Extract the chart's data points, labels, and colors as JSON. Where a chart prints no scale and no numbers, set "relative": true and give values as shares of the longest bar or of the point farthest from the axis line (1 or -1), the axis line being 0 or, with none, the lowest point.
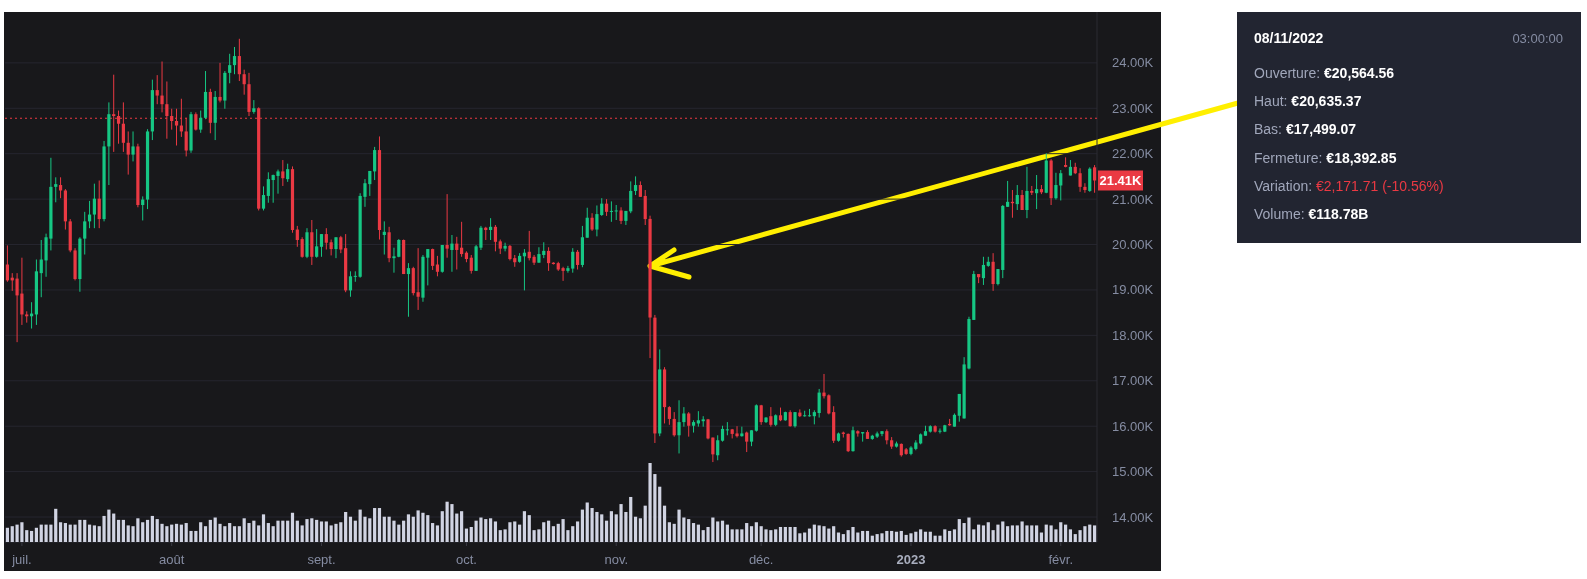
{
  "chart_data": [
    {
      "type": "candlestick",
      "xlim": [
        "2022-06-27T12:00",
        "2023-02-08T12:00"
      ],
      "ylim": [
        13.45,
        25.12
      ],
      "xticks": [
        {
          "value": "2022-07-01",
          "label": "juil."
        },
        {
          "value": "2022-08-01",
          "label": "août"
        },
        {
          "value": "2022-09-01",
          "label": "sept."
        },
        {
          "value": "2022-10-01",
          "label": "oct."
        },
        {
          "value": "2022-11-01",
          "label": "nov."
        },
        {
          "value": "2022-12-01",
          "label": "déc."
        },
        {
          "value": "2023-01-01",
          "label": "2023"
        },
        {
          "value": "2023-02-01",
          "label": "févr."
        }
      ],
      "yticks": [
        {
          "value": 14,
          "label": "14.00K"
        },
        {
          "value": 15,
          "label": "15.00K"
        },
        {
          "value": 16,
          "label": "16.00K"
        },
        {
          "value": 17,
          "label": "17.00K"
        },
        {
          "value": 18,
          "label": "18.00K"
        },
        {
          "value": 19,
          "label": "19.00K"
        },
        {
          "value": 20,
          "label": "20.00K"
        },
        {
          "value": 21,
          "label": "21.00K"
        },
        {
          "value": 22,
          "label": "22.00K"
        },
        {
          "value": 23,
          "label": "23.00K"
        },
        {
          "value": 24,
          "label": "24.00K"
        }
      ],
      "grid": "y",
      "ref_lines": [
        {
          "axis": "y",
          "value": 22.78,
          "color": "#ea3943",
          "line_style": "dotted"
        }
      ],
      "annotations": [
        "21.41K"
      ],
      "x": [
        "2022-06-28",
        "2022-06-29",
        "2022-06-30",
        "2022-07-01",
        "2022-07-02",
        "2022-07-03",
        "2022-07-04",
        "2022-07-05",
        "2022-07-06",
        "2022-07-07",
        "2022-07-08",
        "2022-07-09",
        "2022-07-10",
        "2022-07-11",
        "2022-07-12",
        "2022-07-13",
        "2022-07-14",
        "2022-07-15",
        "2022-07-16",
        "2022-07-17",
        "2022-07-18",
        "2022-07-19",
        "2022-07-20",
        "2022-07-21",
        "2022-07-22",
        "2022-07-23",
        "2022-07-24",
        "2022-07-25",
        "2022-07-26",
        "2022-07-27",
        "2022-07-28",
        "2022-07-29",
        "2022-07-30",
        "2022-07-31",
        "2022-08-01",
        "2022-08-02",
        "2022-08-03",
        "2022-08-04",
        "2022-08-05",
        "2022-08-06",
        "2022-08-07",
        "2022-08-08",
        "2022-08-09",
        "2022-08-10",
        "2022-08-11",
        "2022-08-12",
        "2022-08-13",
        "2022-08-14",
        "2022-08-15",
        "2022-08-16",
        "2022-08-17",
        "2022-08-18",
        "2022-08-19",
        "2022-08-20",
        "2022-08-21",
        "2022-08-22",
        "2022-08-23",
        "2022-08-24",
        "2022-08-25",
        "2022-08-26",
        "2022-08-27",
        "2022-08-28",
        "2022-08-29",
        "2022-08-30",
        "2022-08-31",
        "2022-09-01",
        "2022-09-02",
        "2022-09-03",
        "2022-09-04",
        "2022-09-05",
        "2022-09-06",
        "2022-09-07",
        "2022-09-08",
        "2022-09-09",
        "2022-09-10",
        "2022-09-11",
        "2022-09-12",
        "2022-09-13",
        "2022-09-14",
        "2022-09-15",
        "2022-09-16",
        "2022-09-17",
        "2022-09-18",
        "2022-09-19",
        "2022-09-20",
        "2022-09-21",
        "2022-09-22",
        "2022-09-23",
        "2022-09-24",
        "2022-09-25",
        "2022-09-26",
        "2022-09-27",
        "2022-09-28",
        "2022-09-29",
        "2022-09-30",
        "2022-10-01",
        "2022-10-02",
        "2022-10-03",
        "2022-10-04",
        "2022-10-05",
        "2022-10-06",
        "2022-10-07",
        "2022-10-08",
        "2022-10-09",
        "2022-10-10",
        "2022-10-11",
        "2022-10-12",
        "2022-10-13",
        "2022-10-14",
        "2022-10-15",
        "2022-10-16",
        "2022-10-17",
        "2022-10-18",
        "2022-10-19",
        "2022-10-20",
        "2022-10-21",
        "2022-10-22",
        "2022-10-23",
        "2022-10-24",
        "2022-10-25",
        "2022-10-26",
        "2022-10-27",
        "2022-10-28",
        "2022-10-29",
        "2022-10-30",
        "2022-10-31",
        "2022-11-01",
        "2022-11-02",
        "2022-11-03",
        "2022-11-04",
        "2022-11-05",
        "2022-11-06",
        "2022-11-07",
        "2022-11-08",
        "2022-11-09",
        "2022-11-10",
        "2022-11-11",
        "2022-11-12",
        "2022-11-13",
        "2022-11-14",
        "2022-11-15",
        "2022-11-16",
        "2022-11-17",
        "2022-11-18",
        "2022-11-19",
        "2022-11-20",
        "2022-11-21",
        "2022-11-22",
        "2022-11-23",
        "2022-11-24",
        "2022-11-25",
        "2022-11-26",
        "2022-11-27",
        "2022-11-28",
        "2022-11-29",
        "2022-11-30",
        "2022-12-01",
        "2022-12-02",
        "2022-12-03",
        "2022-12-04",
        "2022-12-05",
        "2022-12-06",
        "2022-12-07",
        "2022-12-08",
        "2022-12-09",
        "2022-12-10",
        "2022-12-11",
        "2022-12-12",
        "2022-12-13",
        "2022-12-14",
        "2022-12-15",
        "2022-12-16",
        "2022-12-17",
        "2022-12-18",
        "2022-12-19",
        "2022-12-20",
        "2022-12-21",
        "2022-12-22",
        "2022-12-23",
        "2022-12-24",
        "2022-12-25",
        "2022-12-26",
        "2022-12-27",
        "2022-12-28",
        "2022-12-29",
        "2022-12-30",
        "2022-12-31",
        "2023-01-01",
        "2023-01-02",
        "2023-01-03",
        "2023-01-04",
        "2023-01-05",
        "2023-01-06",
        "2023-01-07",
        "2023-01-08",
        "2023-01-09",
        "2023-01-10",
        "2023-01-11",
        "2023-01-12",
        "2023-01-13",
        "2023-01-14",
        "2023-01-15",
        "2023-01-16",
        "2023-01-17",
        "2023-01-18",
        "2023-01-19",
        "2023-01-20",
        "2023-01-21",
        "2023-01-22",
        "2023-01-23",
        "2023-01-24",
        "2023-01-25",
        "2023-01-26",
        "2023-01-27",
        "2023-01-28",
        "2023-01-29",
        "2023-01-30",
        "2023-01-31",
        "2023-02-01",
        "2023-02-02",
        "2023-02-03",
        "2023-02-04",
        "2023-02-05",
        "2023-02-06",
        "2023-02-07",
        "2023-02-08"
      ],
      "ohlc": [
        [
          19.56,
          19.98,
          19.18,
          19.21
        ],
        [
          19.27,
          19.37,
          18.98,
          19.21
        ],
        [
          19.25,
          19.37,
          17.85,
          18.88
        ],
        [
          18.92,
          19.71,
          18.23,
          18.46
        ],
        [
          18.46,
          18.53,
          18.28,
          18.42
        ],
        [
          18.42,
          18.73,
          18.15,
          18.48
        ],
        [
          18.46,
          19.67,
          18.23,
          19.41
        ],
        [
          19.37,
          20.1,
          18.84,
          19.67
        ],
        [
          19.65,
          20.24,
          19.29,
          20.16
        ],
        [
          20.13,
          21.91,
          19.87,
          21.27
        ],
        [
          21.27,
          21.48,
          20.93,
          21.33
        ],
        [
          21.31,
          21.48,
          21.02,
          21.19
        ],
        [
          21.19,
          21.22,
          20.33,
          20.51
        ],
        [
          20.51,
          20.56,
          19.83,
          19.87
        ],
        [
          19.87,
          19.92,
          19.21,
          19.24
        ],
        [
          19.24,
          20.16,
          18.96,
          20.13
        ],
        [
          20.13,
          20.72,
          19.78,
          20.51
        ],
        [
          20.51,
          20.96,
          20.36,
          20.66
        ],
        [
          20.66,
          21.34,
          20.36,
          21.01
        ],
        [
          21.01,
          21.41,
          20.36,
          20.56
        ],
        [
          20.56,
          22.28,
          20.51,
          22.16
        ],
        [
          22.16,
          23.13,
          21.31,
          22.87
        ],
        [
          22.87,
          23.74,
          22.04,
          22.83
        ],
        [
          22.83,
          22.95,
          22.22,
          22.66
        ],
        [
          22.66,
          23.13,
          22.04,
          22.24
        ],
        [
          22.24,
          22.49,
          21.54,
          21.98
        ],
        [
          21.98,
          22.49,
          21.83,
          22.16
        ],
        [
          22.16,
          22.22,
          20.82,
          20.87
        ],
        [
          20.87,
          21.06,
          20.53,
          20.99
        ],
        [
          20.99,
          22.54,
          20.78,
          22.49
        ],
        [
          22.49,
          23.63,
          22.3,
          23.4
        ],
        [
          23.4,
          23.73,
          23.09,
          23.28
        ],
        [
          23.28,
          24.03,
          22.91,
          23.09
        ],
        [
          23.09,
          23.59,
          22.33,
          22.83
        ],
        [
          22.83,
          22.99,
          22.53,
          22.72
        ],
        [
          22.72,
          22.99,
          22.18,
          22.62
        ],
        [
          22.62,
          23.21,
          22.37,
          22.49
        ],
        [
          22.49,
          22.79,
          21.94,
          22.07
        ],
        [
          22.07,
          22.92,
          22.02,
          22.87
        ],
        [
          22.87,
          22.91,
          22.51,
          22.53
        ],
        [
          22.53,
          22.95,
          22.46,
          22.79
        ],
        [
          22.79,
          23.82,
          22.76,
          23.36
        ],
        [
          23.36,
          23.43,
          22.45,
          22.68
        ],
        [
          22.68,
          23.38,
          22.3,
          23.25
        ],
        [
          23.25,
          24.0,
          23.13,
          23.17
        ],
        [
          23.17,
          23.82,
          22.99,
          23.78
        ],
        [
          23.78,
          24.2,
          23.55,
          23.95
        ],
        [
          23.95,
          24.35,
          23.75,
          24.15
        ],
        [
          24.15,
          24.53,
          23.6,
          23.75
        ],
        [
          23.75,
          23.85,
          23.3,
          23.53
        ],
        [
          23.53,
          23.78,
          22.83,
          22.92
        ],
        [
          22.92,
          23.18,
          22.88,
          23.0
        ],
        [
          23.0,
          23.02,
          20.75,
          20.79
        ],
        [
          20.79,
          21.28,
          20.75,
          21.09
        ],
        [
          21.07,
          21.59,
          20.92,
          21.44
        ],
        [
          21.42,
          21.54,
          20.92,
          21.53
        ],
        [
          21.51,
          21.65,
          21.12,
          21.61
        ],
        [
          21.61,
          21.86,
          21.29,
          21.46
        ],
        [
          21.44,
          21.78,
          21.38,
          21.66
        ],
        [
          21.66,
          21.72,
          20.26,
          20.32
        ],
        [
          20.33,
          20.41,
          19.95,
          20.1
        ],
        [
          20.12,
          20.16,
          19.71,
          19.73
        ],
        [
          19.73,
          20.36,
          19.7,
          20.27
        ],
        [
          20.27,
          20.54,
          19.55,
          19.73
        ],
        [
          19.73,
          20.34,
          19.71,
          19.96
        ],
        [
          19.95,
          20.23,
          19.73,
          20.23
        ],
        [
          20.23,
          20.36,
          19.89,
          20.04
        ],
        [
          20.05,
          20.11,
          19.76,
          19.9
        ],
        [
          19.9,
          20.16,
          19.7,
          20.16
        ],
        [
          20.16,
          20.19,
          19.81,
          19.89
        ],
        [
          19.92,
          20.23,
          18.95,
          18.99
        ],
        [
          18.99,
          19.41,
          18.85,
          19.3
        ],
        [
          19.29,
          19.41,
          19.18,
          19.31
        ],
        [
          19.29,
          21.13,
          19.27,
          21.07
        ],
        [
          21.05,
          21.44,
          20.83,
          21.35
        ],
        [
          21.33,
          21.62,
          21.07,
          21.62
        ],
        [
          21.61,
          22.15,
          21.42,
          22.08
        ],
        [
          22.08,
          22.38,
          20.11,
          20.32
        ],
        [
          20.21,
          20.51,
          19.78,
          20.28
        ],
        [
          20.27,
          20.39,
          19.61,
          19.7
        ],
        [
          19.7,
          19.93,
          19.38,
          19.74
        ],
        [
          19.73,
          20.12,
          19.72,
          20.1
        ],
        [
          20.1,
          20.11,
          19.35,
          19.35
        ],
        [
          19.35,
          19.59,
          18.41,
          19.48
        ],
        [
          19.48,
          19.51,
          18.88,
          18.93
        ],
        [
          18.95,
          19.92,
          18.56,
          18.85
        ],
        [
          18.83,
          19.77,
          18.74,
          19.73
        ],
        [
          19.71,
          19.9,
          19.1,
          19.9
        ],
        [
          19.9,
          19.91,
          19.44,
          19.53
        ],
        [
          19.56,
          19.75,
          19.3,
          19.4
        ],
        [
          19.4,
          19.99,
          19.38,
          19.99
        ],
        [
          19.99,
          21.11,
          19.71,
          19.91
        ],
        [
          19.88,
          20.21,
          19.4,
          20.02
        ],
        [
          20.02,
          20.17,
          19.45,
          19.88
        ],
        [
          19.93,
          20.5,
          19.73,
          19.79
        ],
        [
          19.82,
          19.85,
          19.61,
          19.68
        ],
        [
          19.71,
          19.77,
          19.36,
          19.42
        ],
        [
          19.42,
          19.99,
          19.42,
          19.96
        ],
        [
          19.93,
          20.41,
          19.88,
          20.37
        ],
        [
          20.37,
          20.39,
          20.1,
          20.32
        ],
        [
          20.32,
          20.58,
          20.1,
          20.39
        ],
        [
          20.39,
          20.43,
          19.85,
          20.06
        ],
        [
          20.07,
          20.11,
          19.79,
          19.91
        ],
        [
          19.91,
          20.04,
          19.85,
          19.97
        ],
        [
          19.97,
          19.99,
          19.65,
          19.68
        ],
        [
          19.7,
          19.77,
          19.51,
          19.61
        ],
        [
          19.62,
          19.81,
          19.6,
          19.75
        ],
        [
          19.74,
          19.9,
          18.99,
          19.82
        ],
        [
          19.84,
          20.3,
          19.65,
          19.7
        ],
        [
          19.73,
          19.77,
          19.55,
          19.6
        ],
        [
          19.6,
          19.94,
          19.6,
          19.79
        ],
        [
          19.77,
          20.05,
          19.7,
          19.86
        ],
        [
          19.86,
          19.94,
          19.42,
          19.59
        ],
        [
          19.6,
          19.61,
          19.56,
          19.57
        ],
        [
          19.59,
          19.62,
          19.42,
          19.45
        ],
        [
          19.48,
          19.51,
          19.2,
          19.42
        ],
        [
          19.42,
          19.53,
          19.38,
          19.48
        ],
        [
          19.47,
          19.92,
          19.38,
          19.84
        ],
        [
          19.84,
          19.88,
          19.45,
          19.55
        ],
        [
          19.55,
          20.41,
          19.5,
          20.16
        ],
        [
          20.15,
          20.81,
          20.15,
          20.59
        ],
        [
          20.59,
          20.69,
          20.3,
          20.33
        ],
        [
          20.33,
          20.86,
          20.18,
          20.67
        ],
        [
          20.65,
          21.02,
          20.63,
          20.9
        ],
        [
          20.9,
          21.0,
          20.63,
          20.72
        ],
        [
          20.73,
          20.95,
          20.5,
          20.74
        ],
        [
          20.74,
          20.87,
          20.54,
          20.75
        ],
        [
          20.75,
          20.82,
          20.45,
          20.52
        ],
        [
          20.52,
          20.74,
          20.43,
          20.74
        ],
        [
          20.73,
          21.39,
          20.69,
          21.18
        ],
        [
          21.18,
          21.5,
          21.09,
          21.31
        ],
        [
          21.31,
          21.39,
          21.05,
          21.05
        ],
        [
          21.07,
          21.2,
          20.43,
          20.56
        ],
        [
          20.56456,
          20.63537,
          17.49907,
          18.39285
        ],
        [
          18.39,
          18.45,
          15.63,
          15.84
        ],
        [
          15.84,
          17.69,
          15.78,
          17.25
        ],
        [
          17.25,
          17.3,
          16.06,
          16.42
        ],
        [
          16.42,
          16.44,
          16.03,
          16.16
        ],
        [
          16.16,
          16.31,
          15.77,
          15.8
        ],
        [
          15.8,
          16.57,
          15.4,
          16.09
        ],
        [
          16.09,
          16.42,
          15.99,
          16.28
        ],
        [
          16.28,
          16.31,
          15.77,
          16.01
        ],
        [
          16.01,
          16.13,
          15.86,
          16.09
        ],
        [
          16.06,
          16.33,
          15.99,
          16.13
        ],
        [
          16.11,
          16.22,
          15.99,
          16.15
        ],
        [
          16.15,
          16.16,
          15.71,
          15.73
        ],
        [
          15.75,
          15.75,
          15.21,
          15.38
        ],
        [
          15.36,
          15.8,
          15.25,
          15.69
        ],
        [
          15.68,
          16.01,
          15.66,
          15.94
        ],
        [
          15.91,
          16.09,
          15.8,
          15.93
        ],
        [
          15.93,
          15.94,
          15.73,
          15.83
        ],
        [
          15.84,
          16.0,
          15.75,
          15.78
        ],
        [
          15.78,
          15.99,
          15.77,
          15.84
        ],
        [
          15.86,
          15.88,
          15.43,
          15.66
        ],
        [
          15.66,
          15.91,
          15.56,
          15.91
        ],
        [
          15.9,
          16.48,
          15.88,
          16.46
        ],
        [
          16.46,
          16.47,
          16.03,
          16.09
        ],
        [
          16.09,
          16.2,
          16.07,
          16.19
        ],
        [
          16.22,
          16.42,
          15.99,
          16.03
        ],
        [
          16.03,
          16.26,
          16.0,
          16.24
        ],
        [
          16.24,
          16.41,
          16.11,
          16.13
        ],
        [
          16.13,
          16.32,
          16.12,
          16.31
        ],
        [
          16.31,
          16.35,
          15.99,
          16.0
        ],
        [
          16.0,
          16.31,
          15.97,
          16.31
        ],
        [
          16.3,
          16.37,
          16.2,
          16.22
        ],
        [
          16.22,
          16.34,
          16.21,
          16.24
        ],
        [
          16.22,
          16.38,
          16.21,
          16.24
        ],
        [
          16.22,
          16.35,
          16.04,
          16.31
        ],
        [
          16.29,
          16.82,
          16.19,
          16.74
        ],
        [
          16.74,
          17.15,
          16.61,
          16.66
        ],
        [
          16.68,
          16.7,
          16.26,
          16.28
        ],
        [
          16.31,
          16.44,
          15.63,
          15.68
        ],
        [
          15.68,
          15.86,
          15.66,
          15.84
        ],
        [
          15.86,
          15.88,
          15.75,
          15.83
        ],
        [
          15.83,
          15.84,
          15.43,
          15.45
        ],
        [
          15.45,
          15.99,
          15.44,
          15.91
        ],
        [
          15.89,
          15.91,
          15.77,
          15.84
        ],
        [
          15.84,
          15.87,
          15.66,
          15.87
        ],
        [
          15.87,
          15.91,
          15.72,
          15.72
        ],
        [
          15.72,
          15.81,
          15.7,
          15.79
        ],
        [
          15.77,
          15.88,
          15.74,
          15.84
        ],
        [
          15.83,
          15.89,
          15.78,
          15.89
        ],
        [
          15.89,
          15.93,
          15.6,
          15.69
        ],
        [
          15.69,
          15.76,
          15.5,
          15.55
        ],
        [
          15.55,
          15.66,
          15.53,
          15.62
        ],
        [
          15.61,
          15.62,
          15.33,
          15.36
        ],
        [
          15.49,
          15.52,
          15.37,
          15.39
        ],
        [
          15.39,
          15.56,
          15.36,
          15.53
        ],
        [
          15.5,
          15.69,
          15.47,
          15.64
        ],
        [
          15.62,
          15.84,
          15.6,
          15.82
        ],
        [
          15.79,
          16.01,
          15.79,
          15.89
        ],
        [
          15.88,
          16.02,
          15.86,
          16.0
        ],
        [
          16.0,
          16.02,
          15.86,
          15.88
        ],
        [
          15.88,
          15.95,
          15.84,
          15.9
        ],
        [
          15.88,
          16.03,
          15.87,
          16.02
        ],
        [
          16.05,
          16.16,
          16.01,
          16.02
        ],
        [
          15.99,
          16.28,
          15.99,
          16.25
        ],
        [
          16.23,
          16.71,
          16.1,
          16.71
        ],
        [
          16.17,
          17.52,
          16.17,
          17.36
        ],
        [
          17.27,
          18.41,
          17.25,
          18.36
        ],
        [
          18.34,
          19.42,
          18.34,
          19.35
        ],
        [
          19.35,
          19.35,
          19.15,
          19.28
        ],
        [
          19.26,
          19.73,
          19.11,
          19.55
        ],
        [
          19.53,
          19.73,
          19.51,
          19.62
        ],
        [
          19.62,
          19.81,
          18.98,
          19.13
        ],
        [
          19.13,
          19.46,
          19.1,
          19.46
        ],
        [
          19.44,
          20.87,
          19.26,
          20.85
        ],
        [
          20.83,
          21.4,
          20.83,
          20.94
        ],
        [
          20.94,
          21.2,
          20.59,
          20.91
        ],
        [
          20.89,
          21.31,
          20.76,
          21.09
        ],
        [
          21.09,
          21.2,
          20.76,
          20.76
        ],
        [
          20.76,
          21.71,
          20.58,
          21.18
        ],
        [
          21.18,
          21.29,
          21.09,
          21.14
        ],
        [
          21.13,
          21.53,
          20.78,
          21.22
        ],
        [
          21.22,
          21.31,
          21.11,
          21.15
        ],
        [
          21.14,
          22.01,
          21.13,
          21.85
        ],
        [
          21.85,
          21.88,
          20.87,
          21.02
        ],
        [
          21.02,
          21.58,
          20.99,
          21.31
        ],
        [
          21.3,
          21.64,
          20.97,
          21.57
        ],
        [
          21.75,
          21.92,
          21.7,
          21.71
        ],
        [
          21.52,
          21.86,
          21.52,
          21.71
        ],
        [
          21.71,
          21.8,
          21.55,
          21.57
        ],
        [
          21.57,
          21.68,
          21.16,
          21.27
        ],
        [
          21.27,
          21.35,
          21.14,
          21.2
        ],
        [
          21.18,
          21.7,
          21.16,
          21.67
        ],
        [
          21.7,
          21.75,
          21.14,
          21.41
        ]
      ]
    },
    {
      "type": "bar",
      "relative": true,
      "color": "#d1d4e3",
      "xlim": [
        "2022-06-27T12:00",
        "2023-02-08T12:00"
      ],
      "x": [
        "2022-06-28",
        "2022-06-29",
        "2022-06-30",
        "2022-07-01",
        "2022-07-02",
        "2022-07-03",
        "2022-07-04",
        "2022-07-05",
        "2022-07-06",
        "2022-07-07",
        "2022-07-08",
        "2022-07-09",
        "2022-07-10",
        "2022-07-11",
        "2022-07-12",
        "2022-07-13",
        "2022-07-14",
        "2022-07-15",
        "2022-07-16",
        "2022-07-17",
        "2022-07-18",
        "2022-07-19",
        "2022-07-20",
        "2022-07-21",
        "2022-07-22",
        "2022-07-23",
        "2022-07-24",
        "2022-07-25",
        "2022-07-26",
        "2022-07-27",
        "2022-07-28",
        "2022-07-29",
        "2022-07-30",
        "2022-07-31",
        "2022-08-01",
        "2022-08-02",
        "2022-08-03",
        "2022-08-04",
        "2022-08-05",
        "2022-08-06",
        "2022-08-07",
        "2022-08-08",
        "2022-08-09",
        "2022-08-10",
        "2022-08-11",
        "2022-08-12",
        "2022-08-13",
        "2022-08-14",
        "2022-08-15",
        "2022-08-16",
        "2022-08-17",
        "2022-08-18",
        "2022-08-19",
        "2022-08-20",
        "2022-08-21",
        "2022-08-22",
        "2022-08-23",
        "2022-08-24",
        "2022-08-25",
        "2022-08-26",
        "2022-08-27",
        "2022-08-28",
        "2022-08-29",
        "2022-08-30",
        "2022-08-31",
        "2022-09-01",
        "2022-09-02",
        "2022-09-03",
        "2022-09-04",
        "2022-09-05",
        "2022-09-06",
        "2022-09-07",
        "2022-09-08",
        "2022-09-09",
        "2022-09-10",
        "2022-09-11",
        "2022-09-12",
        "2022-09-13",
        "2022-09-14",
        "2022-09-15",
        "2022-09-16",
        "2022-09-17",
        "2022-09-18",
        "2022-09-19",
        "2022-09-20",
        "2022-09-21",
        "2022-09-22",
        "2022-09-23",
        "2022-09-24",
        "2022-09-25",
        "2022-09-26",
        "2022-09-27",
        "2022-09-28",
        "2022-09-29",
        "2022-09-30",
        "2022-10-01",
        "2022-10-02",
        "2022-10-03",
        "2022-10-04",
        "2022-10-05",
        "2022-10-06",
        "2022-10-07",
        "2022-10-08",
        "2022-10-09",
        "2022-10-10",
        "2022-10-11",
        "2022-10-12",
        "2022-10-13",
        "2022-10-14",
        "2022-10-15",
        "2022-10-16",
        "2022-10-17",
        "2022-10-18",
        "2022-10-19",
        "2022-10-20",
        "2022-10-21",
        "2022-10-22",
        "2022-10-23",
        "2022-10-24",
        "2022-10-25",
        "2022-10-26",
        "2022-10-27",
        "2022-10-28",
        "2022-10-29",
        "2022-10-30",
        "2022-10-31",
        "2022-11-01",
        "2022-11-02",
        "2022-11-03",
        "2022-11-04",
        "2022-11-05",
        "2022-11-06",
        "2022-11-07",
        "2022-11-08",
        "2022-11-09",
        "2022-11-10",
        "2022-11-11",
        "2022-11-12",
        "2022-11-13",
        "2022-11-14",
        "2022-11-15",
        "2022-11-16",
        "2022-11-17",
        "2022-11-18",
        "2022-11-19",
        "2022-11-20",
        "2022-11-21",
        "2022-11-22",
        "2022-11-23",
        "2022-11-24",
        "2022-11-25",
        "2022-11-26",
        "2022-11-27",
        "2022-11-28",
        "2022-11-29",
        "2022-11-30",
        "2022-12-01",
        "2022-12-02",
        "2022-12-03",
        "2022-12-04",
        "2022-12-05",
        "2022-12-06",
        "2022-12-07",
        "2022-12-08",
        "2022-12-09",
        "2022-12-10",
        "2022-12-11",
        "2022-12-12",
        "2022-12-13",
        "2022-12-14",
        "2022-12-15",
        "2022-12-16",
        "2022-12-17",
        "2022-12-18",
        "2022-12-19",
        "2022-12-20",
        "2022-12-21",
        "2022-12-22",
        "2022-12-23",
        "2022-12-24",
        "2022-12-25",
        "2022-12-26",
        "2022-12-27",
        "2022-12-28",
        "2022-12-29",
        "2022-12-30",
        "2022-12-31",
        "2023-01-01",
        "2023-01-02",
        "2023-01-03",
        "2023-01-04",
        "2023-01-05",
        "2023-01-06",
        "2023-01-07",
        "2023-01-08",
        "2023-01-09",
        "2023-01-10",
        "2023-01-11",
        "2023-01-12",
        "2023-01-13",
        "2023-01-14",
        "2023-01-15",
        "2023-01-16",
        "2023-01-17",
        "2023-01-18",
        "2023-01-19",
        "2023-01-20",
        "2023-01-21",
        "2023-01-22",
        "2023-01-23",
        "2023-01-24",
        "2023-01-25",
        "2023-01-26",
        "2023-01-27",
        "2023-01-28",
        "2023-01-29",
        "2023-01-30",
        "2023-01-31",
        "2023-02-01",
        "2023-02-02",
        "2023-02-03",
        "2023-02-04",
        "2023-02-05",
        "2023-02-06",
        "2023-02-07",
        "2023-02-08"
      ],
      "values": [
        0.18,
        0.2,
        0.22,
        0.25,
        0.15,
        0.14,
        0.18,
        0.22,
        0.22,
        0.22,
        0.42,
        0.25,
        0.24,
        0.22,
        0.22,
        0.28,
        0.28,
        0.22,
        0.21,
        0.2,
        0.33,
        0.41,
        0.36,
        0.28,
        0.28,
        0.21,
        0.2,
        0.3,
        0.25,
        0.28,
        0.33,
        0.29,
        0.23,
        0.2,
        0.22,
        0.23,
        0.22,
        0.24,
        0.14,
        0.14,
        0.25,
        0.2,
        0.28,
        0.31,
        0.23,
        0.2,
        0.24,
        0.2,
        0.2,
        0.3,
        0.24,
        0.27,
        0.21,
        0.35,
        0.24,
        0.2,
        0.27,
        0.27,
        0.27,
        0.37,
        0.27,
        0.21,
        0.29,
        0.3,
        0.28,
        0.26,
        0.26,
        0.21,
        0.23,
        0.25,
        0.38,
        0.32,
        0.27,
        0.41,
        0.32,
        0.3,
        0.43,
        0.43,
        0.32,
        0.32,
        0.27,
        0.22,
        0.27,
        0.35,
        0.32,
        0.4,
        0.37,
        0.34,
        0.24,
        0.21,
        0.39,
        0.51,
        0.48,
        0.36,
        0.39,
        0.17,
        0.19,
        0.27,
        0.31,
        0.29,
        0.3,
        0.26,
        0.15,
        0.16,
        0.25,
        0.26,
        0.22,
        0.39,
        0.34,
        0.15,
        0.16,
        0.25,
        0.27,
        0.2,
        0.23,
        0.29,
        0.15,
        0.2,
        0.26,
        0.41,
        0.5,
        0.43,
        0.38,
        0.35,
        0.27,
        0.39,
        0.35,
        0.48,
        0.38,
        0.57,
        0.32,
        0.3,
        0.46,
        1,
        0.86,
        0.7,
        0.46,
        0.25,
        0.23,
        0.41,
        0.31,
        0.29,
        0.24,
        0.22,
        0.15,
        0.19,
        0.31,
        0.26,
        0.27,
        0.22,
        0.16,
        0.16,
        0.16,
        0.24,
        0.2,
        0.25,
        0.2,
        0.16,
        0.15,
        0.16,
        0.19,
        0.19,
        0.19,
        0.19,
        0.11,
        0.12,
        0.17,
        0.22,
        0.21,
        0.2,
        0.17,
        0.2,
        0.12,
        0.1,
        0.15,
        0.19,
        0.12,
        0.14,
        0.14,
        0.08,
        0.1,
        0.11,
        0.14,
        0.14,
        0.13,
        0.14,
        0.09,
        0.11,
        0.13,
        0.16,
        0.13,
        0.13,
        0.08,
        0.08,
        0.16,
        0.14,
        0.16,
        0.29,
        0.24,
        0.31,
        0.16,
        0.22,
        0.21,
        0.25,
        0.15,
        0.22,
        0.26,
        0.2,
        0.21,
        0.21,
        0.26,
        0.21,
        0.21,
        0.21,
        0.12,
        0.22,
        0.21,
        0.16,
        0.25,
        0.22,
        0.16,
        0.1,
        0.15,
        0.2,
        0.22,
        0.21
      ]
    },
    {
      "type": "other",
      "annotations": [
        "08/11/2022",
        "03:00:00",
        "Ouverture: €20,564.56",
        "Haut: €20,635.37",
        "Bas: €17,499.07",
        "Fermeture: €18,392.85",
        "Variation: €2,171.71 (-10.56%)",
        "Volume: €118.78B"
      ]
    }
  ]
}
